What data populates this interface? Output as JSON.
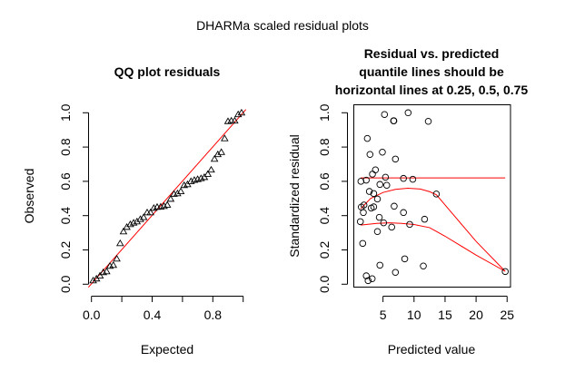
{
  "title": "DHARMa scaled residual plots",
  "chart_data": [
    {
      "type": "scatter",
      "title": "QQ plot residuals",
      "xlabel": "Expected",
      "ylabel": "Observed",
      "xlim": [
        0,
        1
      ],
      "ylim": [
        0,
        1
      ],
      "xticks": [
        "0.0",
        "0.4",
        "0.8"
      ],
      "xminor_ticks": [
        0.2,
        0.6,
        1.0
      ],
      "yticks": [
        "0.0",
        "0.2",
        "0.4",
        "0.6",
        "0.8",
        "1.0"
      ],
      "marker": "triangle",
      "reference_line": {
        "slope": 1,
        "intercept": 0,
        "color": "#ff0000"
      },
      "expected": [
        0.011,
        0.033,
        0.056,
        0.078,
        0.1,
        0.122,
        0.144,
        0.167,
        0.189,
        0.211,
        0.233,
        0.256,
        0.278,
        0.3,
        0.322,
        0.344,
        0.367,
        0.389,
        0.411,
        0.433,
        0.456,
        0.478,
        0.5,
        0.522,
        0.544,
        0.567,
        0.589,
        0.611,
        0.633,
        0.656,
        0.678,
        0.7,
        0.722,
        0.744,
        0.767,
        0.789,
        0.811,
        0.833,
        0.856,
        0.878,
        0.9,
        0.922,
        0.944,
        0.967,
        0.989
      ],
      "observed": [
        0.021,
        0.032,
        0.049,
        0.069,
        0.074,
        0.106,
        0.111,
        0.148,
        0.238,
        0.307,
        0.333,
        0.349,
        0.358,
        0.365,
        0.379,
        0.39,
        0.418,
        0.418,
        0.444,
        0.45,
        0.451,
        0.455,
        0.462,
        0.497,
        0.526,
        0.529,
        0.541,
        0.577,
        0.582,
        0.6,
        0.607,
        0.612,
        0.617,
        0.624,
        0.642,
        0.667,
        0.73,
        0.757,
        0.77,
        0.85,
        0.95,
        0.953,
        0.953,
        0.99,
        1.0
      ],
      "grid": false
    },
    {
      "type": "scatter",
      "title_lines": [
        "Residual vs. predicted",
        "quantile lines should be",
        "horizontal lines at 0.25, 0.5, 0.75"
      ],
      "xlabel": "Predicted value",
      "ylabel": "Standardized residual",
      "xlim": [
        1,
        25.5
      ],
      "ylim": [
        0,
        1
      ],
      "xticks": [
        "5",
        "10",
        "15",
        "20",
        "25"
      ],
      "yticks": [
        "0.0",
        "0.2",
        "0.4",
        "0.6",
        "0.8",
        "1.0"
      ],
      "marker": "circle",
      "points": [
        [
          5.24,
          0.99
        ],
        [
          6.7,
          0.953
        ],
        [
          6.75,
          0.953
        ],
        [
          9.05,
          1.0
        ],
        [
          12.3,
          0.95
        ],
        [
          2.47,
          0.85
        ],
        [
          4.9,
          0.77
        ],
        [
          2.9,
          0.757
        ],
        [
          7.0,
          0.73
        ],
        [
          3.78,
          0.667
        ],
        [
          3.3,
          0.642
        ],
        [
          1.44,
          0.6
        ],
        [
          2.3,
          0.607
        ],
        [
          5.4,
          0.624
        ],
        [
          4.5,
          0.582
        ],
        [
          5.6,
          0.577
        ],
        [
          8.3,
          0.617
        ],
        [
          9.8,
          0.612
        ],
        [
          2.8,
          0.541
        ],
        [
          3.5,
          0.529
        ],
        [
          4.1,
          0.497
        ],
        [
          13.6,
          0.526
        ],
        [
          1.5,
          0.45
        ],
        [
          1.93,
          0.462
        ],
        [
          3.1,
          0.444
        ],
        [
          3.5,
          0.451
        ],
        [
          6.8,
          0.455
        ],
        [
          1.83,
          0.418
        ],
        [
          4.4,
          0.39
        ],
        [
          8.3,
          0.418
        ],
        [
          1.35,
          0.365
        ],
        [
          5.1,
          0.358
        ],
        [
          9.3,
          0.349
        ],
        [
          11.7,
          0.379
        ],
        [
          6.4,
          0.333
        ],
        [
          4.1,
          0.307
        ],
        [
          1.73,
          0.238
        ],
        [
          4.5,
          0.111
        ],
        [
          8.5,
          0.148
        ],
        [
          11.5,
          0.106
        ],
        [
          7.0,
          0.069
        ],
        [
          2.3,
          0.049
        ],
        [
          2.6,
          0.021
        ],
        [
          3.25,
          0.032
        ],
        [
          24.7,
          0.074
        ]
      ],
      "quantile_lines": [
        {
          "quantile": 0.75,
          "color": "#ff0000",
          "points": [
            [
              1.4,
              0.62
            ],
            [
              24.7,
              0.62
            ]
          ]
        },
        {
          "quantile": 0.5,
          "color": "#ff0000",
          "points": [
            [
              1.4,
              0.44
            ],
            [
              3,
              0.5
            ],
            [
              5,
              0.535
            ],
            [
              7,
              0.553
            ],
            [
              9,
              0.56
            ],
            [
              11,
              0.555
            ],
            [
              12.5,
              0.54
            ],
            [
              13.6,
              0.522
            ],
            [
              16,
              0.42
            ],
            [
              20,
              0.25
            ],
            [
              24.7,
              0.075
            ]
          ]
        },
        {
          "quantile": 0.25,
          "color": "#ff0000",
          "points": [
            [
              1.4,
              0.345
            ],
            [
              4,
              0.355
            ],
            [
              6,
              0.358
            ],
            [
              8,
              0.355
            ],
            [
              10,
              0.348
            ],
            [
              12.5,
              0.33
            ],
            [
              15,
              0.28
            ],
            [
              20,
              0.17
            ],
            [
              24.7,
              0.075
            ]
          ]
        }
      ],
      "grid": false
    }
  ]
}
